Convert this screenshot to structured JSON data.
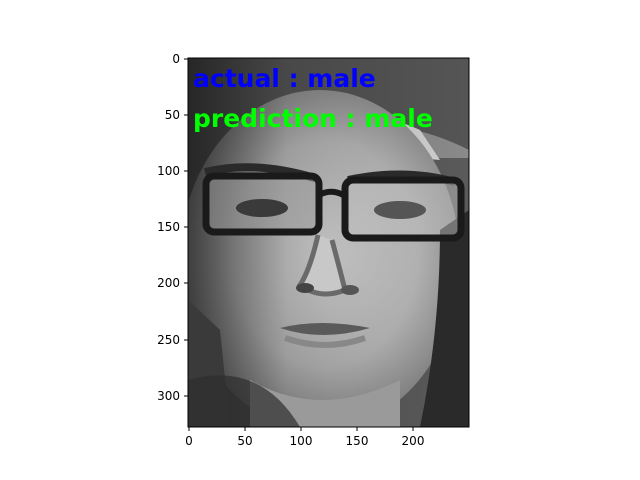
{
  "figure": {
    "overlay": {
      "actual_text": "actual : male",
      "prediction_text": "prediction : male",
      "actual_color": "#0000ff",
      "prediction_color": "#00ff00"
    },
    "axes": {
      "x_ticks": [
        "0",
        "50",
        "100",
        "150",
        "200"
      ],
      "y_ticks": [
        "0",
        "50",
        "100",
        "150",
        "200",
        "250",
        "300"
      ]
    },
    "image": {
      "description_icon": "grayscale-face-photo",
      "background_gray": "#6a6a6a"
    }
  }
}
